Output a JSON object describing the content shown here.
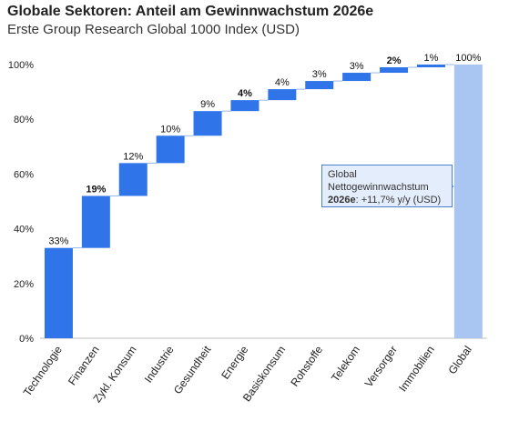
{
  "title": "Globale Sektoren: Anteil am Gewinnwachstum 2026e",
  "subtitle": "Erste Group Research Global 1000 Index (USD)",
  "colors": {
    "bar": "#2f74e8",
    "total": "#a9c6f2",
    "connector": "#7fa6e6",
    "annotation_border": "#4a7fd6",
    "annotation_bg": "#e4edfb"
  },
  "annotation": {
    "line1": "Global",
    "line2": "Nettogewinnwachstum",
    "line3_bold": "2026e",
    "line3_rest": ": +11,7% y/y (USD)"
  },
  "chart_data": {
    "type": "bar",
    "subtype": "waterfall",
    "title": "Globale Sektoren: Anteil am Gewinnwachstum 2026e",
    "subtitle": "Erste Group Research Global 1000 Index (USD)",
    "categories": [
      "Technologie",
      "Finanzen",
      "Zykl. Konsum",
      "Industrie",
      "Gesundheit",
      "Energie",
      "Basiskonsum",
      "Rohstoffe",
      "Telekom",
      "Versorger",
      "Immobilien",
      "Global"
    ],
    "values": [
      33,
      19,
      12,
      10,
      9,
      4,
      4,
      3,
      3,
      2,
      1,
      100
    ],
    "data_labels": [
      "33%",
      "19%",
      "12%",
      "10%",
      "9%",
      "4%",
      "4%",
      "3%",
      "3%",
      "2%",
      "1%",
      "100%"
    ],
    "total_index": 11,
    "ylim": [
      0,
      100
    ],
    "yticks": [
      "0%",
      "20%",
      "40%",
      "60%",
      "80%",
      "100%"
    ],
    "ytick_values": [
      0,
      20,
      40,
      60,
      80,
      100
    ],
    "grid": false
  }
}
